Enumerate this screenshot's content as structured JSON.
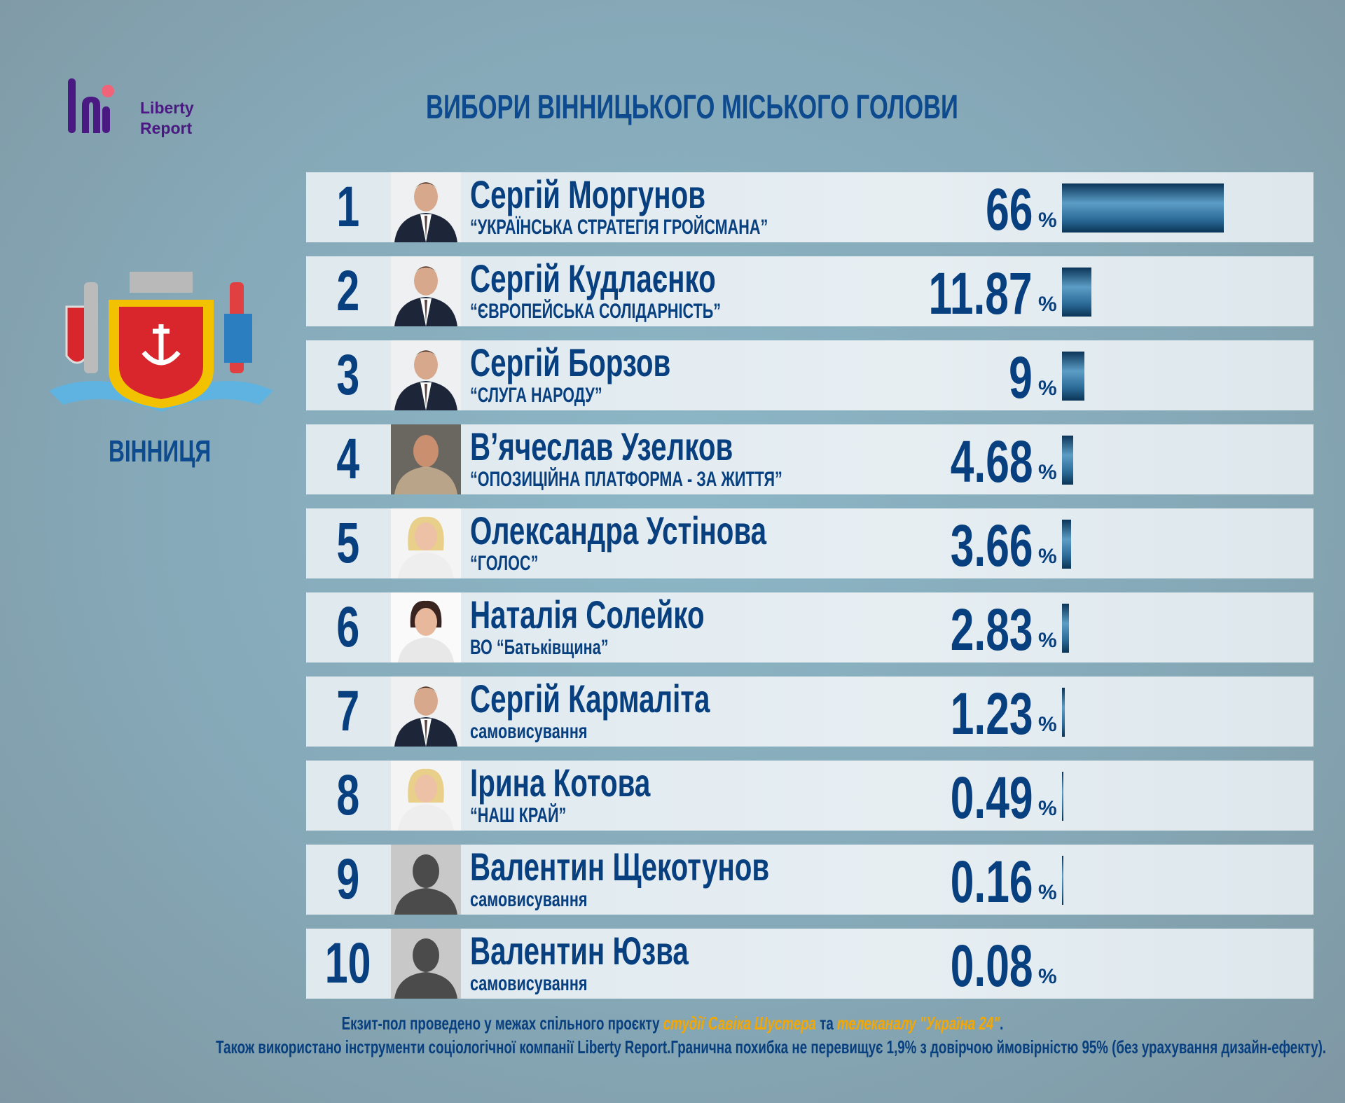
{
  "logo": {
    "text_line1": "Liberty",
    "text_line2": "Report"
  },
  "title": "ВИБОРИ ВІННИЦЬКОГО МІСЬКОГО ГОЛОВИ",
  "city": "ВІННИЦЯ",
  "colors": {
    "text": "#073f7f",
    "bar": "#2a6996",
    "highlight": "#f4a700",
    "logo": "#4a1a82"
  },
  "candidates": [
    {
      "rank": "1",
      "name": "Сергій Моргунов",
      "party": "“УКРАЇНСЬКА СТРАТЕГІЯ ГРОЙСМАНА”",
      "percent": "66",
      "value": 66,
      "photo": "man-suit"
    },
    {
      "rank": "2",
      "name": "Сергій Кудлаєнко",
      "party": "“ЄВРОПЕЙСЬКА СОЛІДАРНІСТЬ”",
      "percent": "11.87",
      "value": 11.87,
      "photo": "man-suit"
    },
    {
      "rank": "3",
      "name": "Сергій Борзов",
      "party": "“СЛУГА НАРОДУ”",
      "percent": "9",
      "value": 9,
      "photo": "man-suit"
    },
    {
      "rank": "4",
      "name": "В’ячеслав Узелков",
      "party": "“ОПОЗИЦІЙНА ПЛАТФОРМА - ЗА ЖИТТЯ”",
      "percent": "4.68",
      "value": 4.68,
      "photo": "man-tshirt"
    },
    {
      "rank": "5",
      "name": "Олександра Устінова",
      "party": "“ГОЛОС”",
      "percent": "3.66",
      "value": 3.66,
      "photo": "woman-blonde"
    },
    {
      "rank": "6",
      "name": "Наталія Солейко",
      "party": "ВО “Батьківщина”",
      "percent": "2.83",
      "value": 2.83,
      "photo": "woman-dark"
    },
    {
      "rank": "7",
      "name": "Сергій Кармаліта",
      "party": "самовисування",
      "percent": "1.23",
      "value": 1.23,
      "photo": "man-suit"
    },
    {
      "rank": "8",
      "name": "Ірина Котова",
      "party": "“НАШ КРАЙ”",
      "percent": "0.49",
      "value": 0.49,
      "photo": "woman-blonde"
    },
    {
      "rank": "9",
      "name": "Валентин Щекотунов",
      "party": "самовисування",
      "percent": "0.16",
      "value": 0.16,
      "photo": "silhouette"
    },
    {
      "rank": "10",
      "name": "Валентин Юзва",
      "party": "самовисування",
      "percent": "0.08",
      "value": 0.08,
      "photo": "silhouette"
    }
  ],
  "percent_sign": "%",
  "footer": {
    "line1_a": "Екзит-пол проведено у межах спільного проєкту ",
    "line1_b": "студії Савіка Шустера",
    "line1_c": " та ",
    "line1_d": "телеканалу \"Україна 24\"",
    "line1_e": ".",
    "line2": "Також використано інструменти соціологічної компанії Liberty Report.Гранична похибка не перевищує 1,9% з довірчою ймовірністю 95% (без урахування дизайн-ефекту)."
  }
}
